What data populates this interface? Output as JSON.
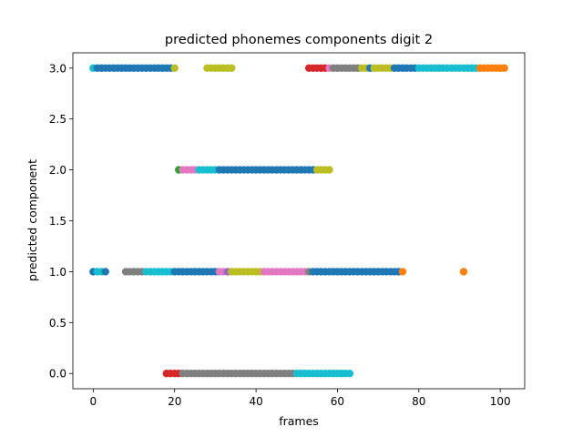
{
  "chart_data": {
    "type": "scatter",
    "title": "predicted phonemes components digit 2",
    "xlabel": "frames",
    "ylabel": "predicted component",
    "xlim": [
      -5,
      106
    ],
    "ylim": [
      -0.15,
      3.15
    ],
    "xticks": [
      0,
      20,
      40,
      60,
      80,
      100
    ],
    "yticks": [
      0.0,
      0.5,
      1.0,
      1.5,
      2.0,
      2.5,
      3.0
    ],
    "xtick_labels": [
      "0",
      "20",
      "40",
      "60",
      "80",
      "100"
    ],
    "ytick_labels": [
      "0.0",
      "0.5",
      "1.0",
      "1.5",
      "2.0",
      "2.5",
      "3.0"
    ],
    "grid": false,
    "legend": "none",
    "colors": {
      "blue": "#1f77b4",
      "orange": "#ff7f0e",
      "green": "#2ca02c",
      "red": "#d62728",
      "purple": "#9467bd",
      "pink": "#e377c2",
      "gray": "#7f7f7f",
      "olive": "#bcbd22",
      "cyan": "#17becf"
    },
    "runs": [
      {
        "y": 3,
        "x0": 0,
        "x1": 0,
        "color": "cyan"
      },
      {
        "y": 3,
        "x0": 1,
        "x1": 19,
        "color": "blue"
      },
      {
        "y": 3,
        "x0": 20,
        "x1": 20,
        "color": "olive"
      },
      {
        "y": 3,
        "x0": 28,
        "x1": 34,
        "color": "olive"
      },
      {
        "y": 3,
        "x0": 53,
        "x1": 57,
        "color": "red"
      },
      {
        "y": 3,
        "x0": 58,
        "x1": 58,
        "color": "pink"
      },
      {
        "y": 3,
        "x0": 59,
        "x1": 65,
        "color": "gray"
      },
      {
        "y": 3,
        "x0": 66,
        "x1": 67,
        "color": "olive"
      },
      {
        "y": 3,
        "x0": 68,
        "x1": 68,
        "color": "blue"
      },
      {
        "y": 3,
        "x0": 69,
        "x1": 73,
        "color": "olive"
      },
      {
        "y": 3,
        "x0": 74,
        "x1": 79,
        "color": "blue"
      },
      {
        "y": 3,
        "x0": 80,
        "x1": 94,
        "color": "cyan"
      },
      {
        "y": 3,
        "x0": 95,
        "x1": 101,
        "color": "orange"
      },
      {
        "y": 2,
        "x0": 21,
        "x1": 21,
        "color": "green"
      },
      {
        "y": 2,
        "x0": 22,
        "x1": 25,
        "color": "pink"
      },
      {
        "y": 2,
        "x0": 26,
        "x1": 30,
        "color": "cyan"
      },
      {
        "y": 2,
        "x0": 31,
        "x1": 54,
        "color": "blue"
      },
      {
        "y": 2,
        "x0": 55,
        "x1": 58,
        "color": "olive"
      },
      {
        "y": 1,
        "x0": 0,
        "x1": 0,
        "color": "blue"
      },
      {
        "y": 1,
        "x0": 1,
        "x1": 2,
        "color": "cyan"
      },
      {
        "y": 1,
        "x0": 3,
        "x1": 3,
        "color": "blue"
      },
      {
        "y": 1,
        "x0": 8,
        "x1": 12,
        "color": "gray"
      },
      {
        "y": 1,
        "x0": 13,
        "x1": 19,
        "color": "cyan"
      },
      {
        "y": 1,
        "x0": 20,
        "x1": 30,
        "color": "blue"
      },
      {
        "y": 1,
        "x0": 31,
        "x1": 32,
        "color": "pink"
      },
      {
        "y": 1,
        "x0": 33,
        "x1": 33,
        "color": "purple"
      },
      {
        "y": 1,
        "x0": 34,
        "x1": 41,
        "color": "olive"
      },
      {
        "y": 1,
        "x0": 42,
        "x1": 52,
        "color": "pink"
      },
      {
        "y": 1,
        "x0": 53,
        "x1": 53,
        "color": "gray"
      },
      {
        "y": 1,
        "x0": 54,
        "x1": 75,
        "color": "blue"
      },
      {
        "y": 1,
        "x0": 76,
        "x1": 76,
        "color": "orange"
      },
      {
        "y": 1,
        "x0": 91,
        "x1": 91,
        "color": "orange"
      },
      {
        "y": 0,
        "x0": 18,
        "x1": 21,
        "color": "red"
      },
      {
        "y": 0,
        "x0": 22,
        "x1": 22,
        "color": "gray"
      },
      {
        "y": 0,
        "x0": 23,
        "x1": 49,
        "color": "gray"
      },
      {
        "y": 0,
        "x0": 50,
        "x1": 63,
        "color": "cyan"
      }
    ]
  }
}
